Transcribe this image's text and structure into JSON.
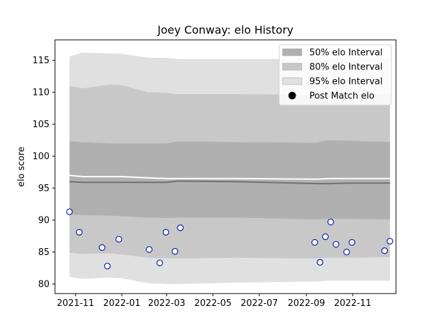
{
  "chart_data": {
    "type": "area",
    "title": "Joey Conway: elo History",
    "xlabel": "",
    "ylabel": "elo score",
    "xlim": [
      "2021-10-05",
      "2022-12-28"
    ],
    "ylim": [
      78.5,
      118.2
    ],
    "x_ticks": [
      "2021-11",
      "2022-01",
      "2022-03",
      "2022-05",
      "2022-07",
      "2022-09",
      "2022-11"
    ],
    "y_ticks": [
      80,
      85,
      90,
      95,
      100,
      105,
      110,
      115
    ],
    "grid": false,
    "legend_position": "top-right",
    "legend": [
      {
        "label": "50% elo Interval",
        "marker": "patch",
        "color": "#b0b0b0"
      },
      {
        "label": "80% elo Interval",
        "marker": "patch",
        "color": "#c8c8c8"
      },
      {
        "label": "95% elo Interval",
        "marker": "patch",
        "color": "#e0e0e0"
      },
      {
        "label": "Post Match elo",
        "marker": "dot",
        "color": "#000000"
      }
    ],
    "band_dates": [
      "2021-10-24",
      "2021-11-10",
      "2021-12-15",
      "2022-01-01",
      "2022-02-05",
      "2022-03-01",
      "2022-03-15",
      "2022-06-01",
      "2022-09-15",
      "2022-09-30",
      "2022-11-01",
      "2022-12-20"
    ],
    "bands": [
      {
        "name": "95% elo Interval",
        "color": "#e0e0e0",
        "upper": [
          115.6,
          116.2,
          116.1,
          116.0,
          115.4,
          115.4,
          115.2,
          115.2,
          115.2,
          115.3,
          115.3,
          115.4
        ],
        "lower": [
          81.1,
          80.8,
          81.0,
          80.9,
          80.1,
          80.0,
          80.0,
          80.2,
          80.4,
          80.5,
          80.5,
          80.5
        ]
      },
      {
        "name": "80% elo Interval",
        "color": "#c8c8c8",
        "upper": [
          111.0,
          110.6,
          111.2,
          111.1,
          110.0,
          109.9,
          109.7,
          109.7,
          109.6,
          109.7,
          109.7,
          109.7
        ],
        "lower": [
          84.9,
          84.7,
          84.8,
          84.6,
          84.1,
          84.0,
          84.0,
          84.1,
          84.0,
          84.1,
          84.1,
          84.2
        ]
      },
      {
        "name": "50% elo Interval",
        "color": "#b0b0b0",
        "upper": [
          102.3,
          102.2,
          102.0,
          102.0,
          102.0,
          102.0,
          102.3,
          102.2,
          102.1,
          102.5,
          102.4,
          102.2
        ],
        "lower": [
          90.9,
          90.8,
          90.7,
          90.6,
          90.4,
          90.3,
          90.4,
          90.4,
          90.1,
          90.2,
          90.2,
          90.1
        ]
      }
    ],
    "median_line": {
      "color": "#707070",
      "values": [
        96.0,
        95.9,
        95.9,
        95.9,
        95.9,
        95.9,
        96.1,
        96.0,
        95.7,
        95.7,
        95.8,
        95.8
      ]
    },
    "reference_line": {
      "color": "#ffffff",
      "values": [
        97.0,
        96.8,
        96.8,
        96.8,
        96.6,
        96.5,
        96.5,
        96.5,
        96.4,
        96.5,
        96.5,
        96.5
      ]
    },
    "series": [
      {
        "name": "Post Match elo",
        "marker_face": "#ffffff",
        "marker_edge": "#0b1fa8",
        "points": [
          {
            "x": "2021-10-24",
            "y": 91.3
          },
          {
            "x": "2021-11-06",
            "y": 88.1
          },
          {
            "x": "2021-12-06",
            "y": 85.7
          },
          {
            "x": "2021-12-13",
            "y": 82.8
          },
          {
            "x": "2021-12-28",
            "y": 87.0
          },
          {
            "x": "2022-02-06",
            "y": 85.4
          },
          {
            "x": "2022-02-20",
            "y": 83.3
          },
          {
            "x": "2022-02-28",
            "y": 88.1
          },
          {
            "x": "2022-03-12",
            "y": 85.1
          },
          {
            "x": "2022-03-19",
            "y": 88.8
          },
          {
            "x": "2022-09-12",
            "y": 86.5
          },
          {
            "x": "2022-09-19",
            "y": 83.4
          },
          {
            "x": "2022-09-26",
            "y": 87.4
          },
          {
            "x": "2022-10-03",
            "y": 89.7
          },
          {
            "x": "2022-10-10",
            "y": 86.2
          },
          {
            "x": "2022-10-24",
            "y": 85.0
          },
          {
            "x": "2022-10-31",
            "y": 86.5
          },
          {
            "x": "2022-12-13",
            "y": 85.2
          },
          {
            "x": "2022-12-20",
            "y": 86.7
          }
        ]
      }
    ]
  }
}
